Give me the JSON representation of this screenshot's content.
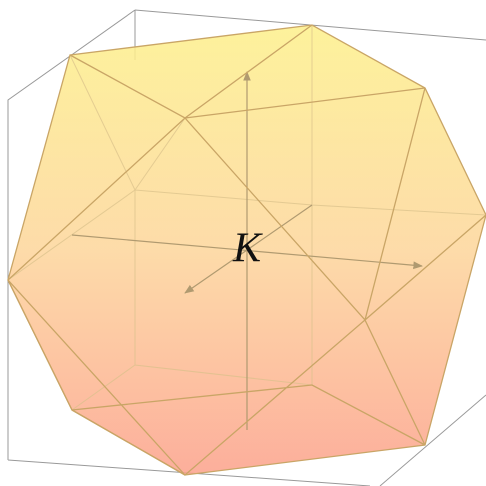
{
  "label": "K"
}
